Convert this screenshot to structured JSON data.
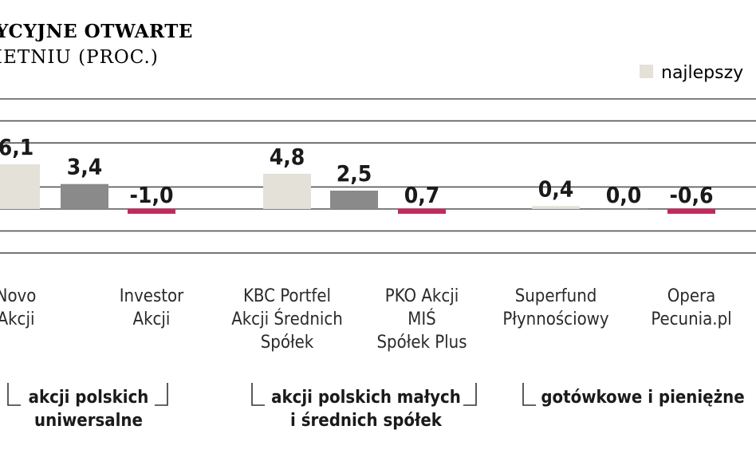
{
  "chart_data": {
    "type": "bar",
    "title": "YCYJNE OTWARTE",
    "subtitle": "IETNIU (PROC.)",
    "legend": [
      {
        "name": "najlepszy",
        "color": "#e3e1d8"
      }
    ],
    "ylim": [
      -3,
      8.5
    ],
    "grid": true,
    "colors": {
      "best": "#e3e1d8",
      "middle": "#8a8a8a",
      "worst": "#c4285e"
    },
    "categories": [
      {
        "label": [
          "Novo",
          "Akcji"
        ],
        "value": 6.1,
        "value_label": "6,1",
        "kind": "best"
      },
      {
        "label": [],
        "value": 3.4,
        "value_label": "3,4",
        "kind": "middle"
      },
      {
        "label": [
          "Investor",
          "Akcji"
        ],
        "value": -1.0,
        "value_label": "-1,0",
        "kind": "worst"
      },
      {
        "label": [
          "KBC Portfel",
          "Akcji Średnich",
          "Spółek"
        ],
        "value": 4.8,
        "value_label": "4,8",
        "kind": "best"
      },
      {
        "label": [],
        "value": 2.5,
        "value_label": "2,5",
        "kind": "middle"
      },
      {
        "label": [
          "PKO Akcji",
          "MIŚ",
          "Spółek Plus"
        ],
        "value": 0.7,
        "value_label": "0,7",
        "kind": "worst"
      },
      {
        "label": [
          "Superfund",
          "Płynnościowy"
        ],
        "value": 0.4,
        "value_label": "0,4",
        "kind": "best"
      },
      {
        "label": [],
        "value": 0.0,
        "value_label": "0,0",
        "kind": "middle"
      },
      {
        "label": [
          "Opera",
          "Pecunia.pl"
        ],
        "value": -0.6,
        "value_label": "-0,6",
        "kind": "worst"
      }
    ],
    "groups": [
      {
        "label": [
          "akcji polskich",
          "uniwersalne"
        ]
      },
      {
        "label": [
          "akcji polskich małych",
          "i średnich spółek"
        ]
      },
      {
        "label": [
          "gotówkowe i pieniężne"
        ]
      }
    ]
  }
}
